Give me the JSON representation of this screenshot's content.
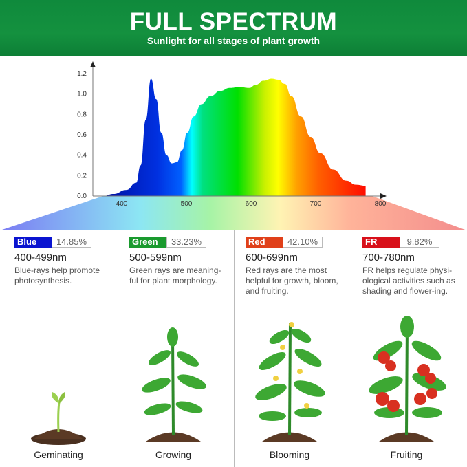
{
  "header": {
    "title": "FULL SPECTRUM",
    "subtitle": "Sunlight for all stages of plant growth",
    "color": "#12903e"
  },
  "chart_data": {
    "type": "area",
    "title": "",
    "xlabel": "",
    "ylabel": "",
    "xlim": [
      360,
      810
    ],
    "ylim": [
      0,
      1.2
    ],
    "x_ticks": [
      "400",
      "500",
      "600",
      "700",
      "800"
    ],
    "y_ticks": [
      "0.0",
      "0.2",
      "0.4",
      "0.6",
      "0.8",
      "1.0",
      "1.2"
    ],
    "grid": false,
    "series": [
      {
        "x": [
          384,
          400,
          420,
          435,
          442,
          450,
          458,
          466,
          474,
          482,
          490,
          498,
          506,
          514,
          524,
          536,
          550,
          565,
          580,
          595,
          610,
          620,
          632,
          645,
          655,
          665,
          675,
          690,
          705,
          720,
          740,
          760,
          775,
          790
        ],
        "y": [
          0.0,
          0.02,
          0.06,
          0.13,
          0.3,
          0.75,
          1.15,
          0.95,
          0.62,
          0.4,
          0.32,
          0.33,
          0.45,
          0.62,
          0.78,
          0.9,
          0.98,
          1.03,
          1.06,
          1.07,
          1.06,
          1.09,
          1.13,
          1.15,
          1.14,
          1.1,
          0.98,
          0.78,
          0.58,
          0.42,
          0.26,
          0.15,
          0.11,
          0.1
        ]
      }
    ]
  },
  "bands": [
    {
      "name": "Blue",
      "percent": "14.85%",
      "range": "400-499nm",
      "desc": "Blue-rays help promote photosynthesis.",
      "color": "#0a14d0",
      "stage": "Geminating"
    },
    {
      "name": "Green",
      "percent": "33.23%",
      "range": "500-599nm",
      "desc": "Green rays are meaning-ful for plant morphology.",
      "color": "#1a9a2e",
      "stage": "Growing"
    },
    {
      "name": "Red",
      "percent": "42.10%",
      "range": "600-699nm",
      "desc": "Red rays are the most helpful for growth, bloom, and fruiting.",
      "color": "#e0401a",
      "stage": "Blooming"
    },
    {
      "name": "FR",
      "percent": "9.82%",
      "range": "700-780nm",
      "desc": "FR helps regulate physi-ological activities such as shading and flower-ing.",
      "color": "#d8101a",
      "stage": "Fruiting"
    }
  ]
}
